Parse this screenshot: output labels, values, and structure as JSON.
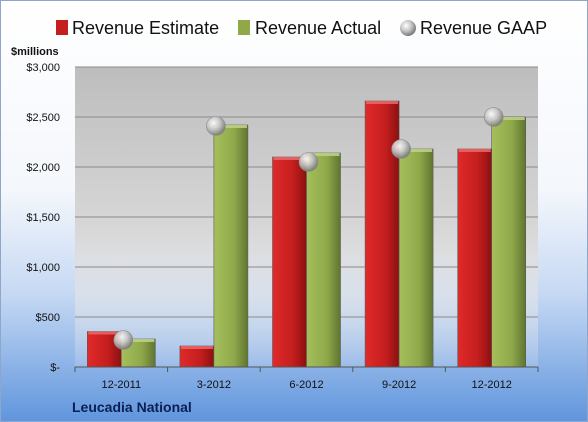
{
  "chart_data": {
    "type": "bar",
    "units_label": "$millions",
    "company": "Leucadia National",
    "categories": [
      "12-2011",
      "3-2012",
      "6-2012",
      "9-2012",
      "12-2012"
    ],
    "series": [
      {
        "name": "Revenue Estimate",
        "kind": "bar",
        "color": "#c41e1e",
        "values": [
          355,
          210,
          2100,
          2660,
          2180
        ]
      },
      {
        "name": "Revenue Actual",
        "kind": "bar",
        "color": "#8fa84a",
        "values": [
          280,
          2420,
          2140,
          2180,
          2500
        ]
      },
      {
        "name": "Revenue GAAP",
        "kind": "marker",
        "color": "#c9c9c9",
        "values": [
          280,
          2420,
          2060,
          2190,
          2510
        ]
      }
    ],
    "ylim": [
      0,
      3000
    ],
    "yticks": [
      0,
      500,
      1000,
      1500,
      2000,
      2500,
      3000
    ],
    "ytick_labels": [
      "$-",
      "$500",
      "$1,000",
      "$1,500",
      "$2,000",
      "$2,500",
      "$3,000"
    ],
    "grid": true,
    "legend_position": "top"
  }
}
